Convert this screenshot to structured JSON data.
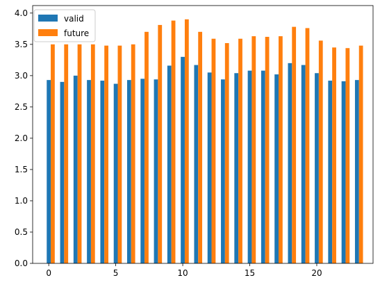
{
  "chart_data": {
    "type": "bar",
    "x": [
      0,
      1,
      2,
      3,
      4,
      5,
      6,
      7,
      8,
      9,
      10,
      11,
      12,
      13,
      14,
      15,
      16,
      17,
      18,
      19,
      20,
      21,
      22,
      23
    ],
    "series": [
      {
        "name": "valid",
        "color": "#1f77b4",
        "values": [
          2.93,
          2.9,
          3.0,
          2.93,
          2.92,
          2.87,
          2.93,
          2.95,
          2.94,
          3.16,
          3.3,
          3.17,
          3.05,
          2.94,
          3.04,
          3.08,
          3.08,
          3.02,
          3.2,
          3.17,
          3.04,
          2.92,
          2.91,
          2.93
        ]
      },
      {
        "name": "future",
        "color": "#ff7f0e",
        "values": [
          3.5,
          3.5,
          3.5,
          3.5,
          3.48,
          3.48,
          3.5,
          3.7,
          3.81,
          3.88,
          3.9,
          3.7,
          3.59,
          3.52,
          3.59,
          3.63,
          3.62,
          3.63,
          3.78,
          3.76,
          3.56,
          3.45,
          3.44,
          3.48
        ]
      }
    ],
    "xlim": [
      -1.2,
      24.2
    ],
    "ylim": [
      0,
      4.12
    ],
    "xticks": [
      "0",
      "5",
      "10",
      "15",
      "20"
    ],
    "xtick_values": [
      0,
      5,
      10,
      15,
      20
    ],
    "yticks": [
      "0.0",
      "0.5",
      "1.0",
      "1.5",
      "2.0",
      "2.5",
      "3.0",
      "3.5",
      "4.0"
    ],
    "ytick_values": [
      0,
      0.5,
      1.0,
      1.5,
      2.0,
      2.5,
      3.0,
      3.5,
      4.0
    ],
    "grid": false,
    "legend_position": "upper-left"
  }
}
